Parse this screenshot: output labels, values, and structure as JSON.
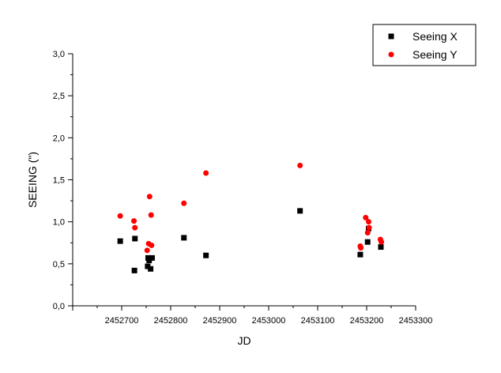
{
  "chart_data": {
    "type": "scatter",
    "title": "",
    "xlabel": "JD",
    "ylabel": "SEEING (\")",
    "xlim": [
      2452600,
      2453300
    ],
    "ylim": [
      0.0,
      3.0
    ],
    "x_ticks": [
      2452700,
      2452800,
      2452900,
      2453000,
      2453100,
      2453200,
      2453300
    ],
    "x_tick_labels": [
      "2452700",
      "2452800",
      "2452900",
      "2453000",
      "2453100",
      "2453200",
      "2453300"
    ],
    "y_ticks": [
      0.0,
      0.5,
      1.0,
      1.5,
      2.0,
      2.5,
      3.0
    ],
    "y_tick_labels": [
      "0,0",
      "0,5",
      "1,0",
      "1,5",
      "2,0",
      "2,5",
      "3,0"
    ],
    "grid": false,
    "legend_position": "top-right",
    "series": [
      {
        "name": "Seeing X",
        "marker": "square",
        "color": "#000000",
        "points": [
          {
            "x": 2452697,
            "y": 0.77
          },
          {
            "x": 2452726,
            "y": 0.42
          },
          {
            "x": 2452727,
            "y": 0.8
          },
          {
            "x": 2452753,
            "y": 0.47
          },
          {
            "x": 2452754,
            "y": 0.57
          },
          {
            "x": 2452756,
            "y": 0.54
          },
          {
            "x": 2452759,
            "y": 0.44
          },
          {
            "x": 2452762,
            "y": 0.57
          },
          {
            "x": 2452827,
            "y": 0.81
          },
          {
            "x": 2452872,
            "y": 0.6
          },
          {
            "x": 2453064,
            "y": 1.13
          },
          {
            "x": 2453187,
            "y": 0.61
          },
          {
            "x": 2453202,
            "y": 0.76
          },
          {
            "x": 2453204,
            "y": 0.92
          },
          {
            "x": 2453229,
            "y": 0.7
          }
        ]
      },
      {
        "name": "Seeing Y",
        "marker": "circle",
        "color": "#ff0000",
        "points": [
          {
            "x": 2452697,
            "y": 1.07
          },
          {
            "x": 2452725,
            "y": 1.01
          },
          {
            "x": 2452727,
            "y": 0.93
          },
          {
            "x": 2452752,
            "y": 0.66
          },
          {
            "x": 2452755,
            "y": 0.74
          },
          {
            "x": 2452757,
            "y": 1.3
          },
          {
            "x": 2452760,
            "y": 1.08
          },
          {
            "x": 2452761,
            "y": 0.72
          },
          {
            "x": 2452827,
            "y": 1.22
          },
          {
            "x": 2452872,
            "y": 1.58
          },
          {
            "x": 2453064,
            "y": 1.67
          },
          {
            "x": 2453187,
            "y": 0.71
          },
          {
            "x": 2453188,
            "y": 0.69
          },
          {
            "x": 2453198,
            "y": 1.05
          },
          {
            "x": 2453202,
            "y": 0.87
          },
          {
            "x": 2453204,
            "y": 1.0
          },
          {
            "x": 2453205,
            "y": 0.93
          },
          {
            "x": 2453228,
            "y": 0.79
          },
          {
            "x": 2453230,
            "y": 0.76
          }
        ]
      }
    ]
  }
}
